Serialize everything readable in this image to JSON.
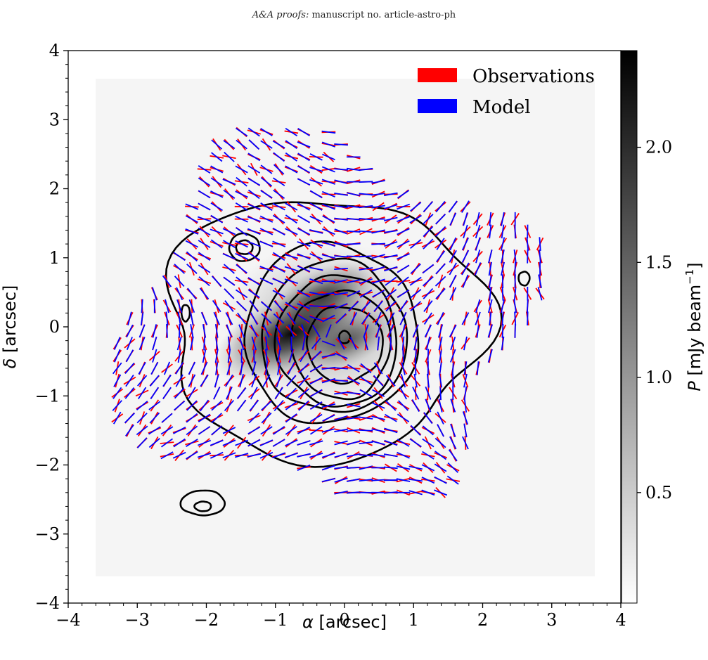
{
  "header": {
    "italic_part": "A&A proofs:",
    "rest": " manuscript no. article-astro-ph"
  },
  "chart_data": {
    "type": "heatmap",
    "title": "",
    "xlabel_symbol": "α",
    "xlabel_unit": " [arcsec]",
    "ylabel_symbol": "δ",
    "ylabel_unit": " [arcsec]",
    "xlim": [
      -4,
      4
    ],
    "ylim": [
      -4,
      4
    ],
    "x_ticks": [
      -4,
      -3,
      -2,
      -1,
      0,
      1,
      2,
      3,
      4
    ],
    "y_ticks": [
      -4,
      -3,
      -2,
      -1,
      0,
      1,
      2,
      3,
      4
    ],
    "x_tick_labels": [
      "−4",
      "−3",
      "−2",
      "−1",
      "0",
      "1",
      "2",
      "3",
      "4"
    ],
    "y_tick_labels": [
      "−4",
      "−3",
      "−2",
      "−1",
      "0",
      "1",
      "2",
      "3",
      "4"
    ],
    "grid": false,
    "colormap": "gray_r",
    "colorbar": {
      "label_symbol": "P",
      "label_unit": " [mJy beam",
      "label_exponent": "−1",
      "label_close": "]",
      "range": [
        0.02,
        2.42
      ],
      "ticks": [
        0.5,
        1.0,
        1.5,
        2.0
      ],
      "tick_labels": [
        "0.5",
        "1.0",
        "1.5",
        "2.0"
      ]
    },
    "intensity_peaks": [
      {
        "x": -0.78,
        "y": -0.1,
        "value": 2.3
      },
      {
        "x": -0.3,
        "y": 0.45,
        "value": 1.2
      },
      {
        "x": 0.05,
        "y": -0.2,
        "value": 0.9
      }
    ],
    "series": [
      {
        "name": "Observations",
        "color": "#ff0000",
        "kind": "polarization vectors"
      },
      {
        "name": "Model",
        "color": "#0000ff",
        "kind": "polarization vectors"
      }
    ],
    "legend_position": "top-right",
    "contours": [
      {
        "level": 1,
        "center": [
          -0.3,
          0.0
        ],
        "rx": 2.3,
        "ry": 1.9
      },
      {
        "level": 2,
        "center": [
          -0.2,
          -0.1
        ],
        "rx": 1.25,
        "ry": 1.3
      },
      {
        "level": 3,
        "center": [
          -0.15,
          -0.15
        ],
        "rx": 1.05,
        "ry": 1.1
      },
      {
        "level": 4,
        "center": [
          -0.1,
          -0.2
        ],
        "rx": 0.88,
        "ry": 0.95
      },
      {
        "level": 5,
        "center": [
          -0.05,
          -0.25
        ],
        "rx": 0.72,
        "ry": 0.78
      },
      {
        "level": 6,
        "center": [
          0.0,
          -0.25
        ],
        "rx": 0.55,
        "ry": 0.55
      },
      {
        "level": 7,
        "center": [
          0.0,
          -0.15
        ],
        "rx": 0.08,
        "ry": 0.09
      }
    ],
    "small_contours": [
      {
        "center": [
          -1.45,
          1.15
        ],
        "rx": 0.22,
        "ry": 0.2
      },
      {
        "center": [
          -1.45,
          1.15
        ],
        "rx": 0.12,
        "ry": 0.1
      },
      {
        "center": [
          -2.05,
          -2.55
        ],
        "rx": 0.32,
        "ry": 0.18
      },
      {
        "center": [
          -2.05,
          -2.6
        ],
        "rx": 0.12,
        "ry": 0.07
      },
      {
        "center": [
          2.6,
          0.7
        ],
        "rx": 0.08,
        "ry": 0.1
      },
      {
        "center": [
          -2.3,
          0.2
        ],
        "rx": 0.06,
        "ry": 0.12
      }
    ],
    "vector_field_extent": {
      "x": [
        -3.65,
        3.2
      ],
      "y": [
        -2.4,
        2.9
      ]
    },
    "vector_spacing": 0.18,
    "vector_length": 0.2
  }
}
